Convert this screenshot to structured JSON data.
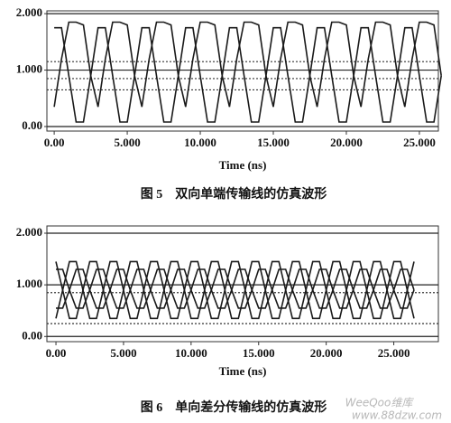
{
  "chart_data": [
    {
      "type": "line",
      "caption": "图 5　双向单端传输线的仿真波形",
      "xlabel": "Time (ns)",
      "x": [
        0,
        0.5,
        1,
        1.5,
        2,
        2.5,
        3,
        3.5,
        4,
        4.5,
        5,
        5.5,
        6,
        6.5,
        7,
        7.5,
        8,
        8.5,
        9,
        9.5,
        10,
        10.5,
        11,
        11.5,
        12,
        12.5,
        13,
        13.5,
        14,
        14.5,
        15,
        15.5,
        16,
        16.5,
        17,
        17.5,
        18,
        18.5,
        19,
        19.5,
        20,
        20.5,
        21,
        21.5,
        22,
        22.5,
        23,
        23.5,
        24,
        24.5,
        25,
        25.5,
        26,
        26.5
      ],
      "series": [
        {
          "color": "#1a1a1a",
          "values": [
            0.35,
            1.2,
            1.85,
            1.85,
            1.8,
            0.9,
            0.35,
            1.2,
            1.85,
            1.85,
            1.8,
            0.9,
            0.35,
            1.2,
            1.85,
            1.85,
            1.8,
            0.9,
            0.35,
            1.2,
            1.85,
            1.85,
            1.8,
            0.9,
            0.35,
            1.2,
            1.85,
            1.85,
            1.8,
            0.9,
            0.35,
            1.2,
            1.85,
            1.85,
            1.8,
            0.9,
            0.35,
            1.2,
            1.85,
            1.85,
            1.8,
            0.9,
            0.35,
            1.2,
            1.85,
            1.85,
            1.8,
            0.9,
            0.35,
            1.2,
            1.85,
            1.85,
            1.8,
            0.9
          ]
        },
        {
          "color": "#1a1a1a",
          "values": [
            1.75,
            1.75,
            0.9,
            0.08,
            0.08,
            0.9,
            1.75,
            1.75,
            0.9,
            0.08,
            0.08,
            0.9,
            1.75,
            1.75,
            0.9,
            0.08,
            0.08,
            0.9,
            1.75,
            1.75,
            0.9,
            0.08,
            0.08,
            0.9,
            1.75,
            1.75,
            0.9,
            0.08,
            0.08,
            0.9,
            1.75,
            1.75,
            0.9,
            0.08,
            0.08,
            0.9,
            1.75,
            1.75,
            0.9,
            0.08,
            0.08,
            0.9,
            1.75,
            1.75,
            0.9,
            0.08,
            0.08,
            0.9,
            1.75,
            1.75,
            0.9,
            0.08,
            0.08,
            0.9
          ]
        }
      ],
      "xlim": [
        -0.5,
        26.3
      ],
      "ylim": [
        -0.08,
        2.05
      ],
      "xticks": [
        {
          "value": 0,
          "label": "0.00"
        },
        {
          "value": 5,
          "label": "5.000"
        },
        {
          "value": 10,
          "label": "10.000"
        },
        {
          "value": 15,
          "label": "15.000"
        },
        {
          "value": 20,
          "label": "20.000"
        },
        {
          "value": 25,
          "label": "25.000"
        }
      ],
      "yticks": [
        {
          "value": 0,
          "label": "0.00"
        },
        {
          "value": 1,
          "label": "1.000"
        },
        {
          "value": 2,
          "label": "2.000"
        }
      ],
      "grid": true,
      "ref_lines": [
        {
          "value": 1.15,
          "style": "dotted"
        },
        {
          "value": 0.85,
          "style": "dotted"
        },
        {
          "value": 0.65,
          "style": "dotted"
        }
      ]
    },
    {
      "type": "line",
      "caption": "图 6　单向差分传输线的仿真波形",
      "xlabel": "Time (ns)",
      "x": [
        0,
        0.5,
        1,
        1.5,
        2,
        2.5,
        3,
        3.5,
        4,
        4.5,
        5,
        5.5,
        6,
        6.5,
        7,
        7.5,
        8,
        8.5,
        9,
        9.5,
        10,
        10.5,
        11,
        11.5,
        12,
        12.5,
        13,
        13.5,
        14,
        14.5,
        15,
        15.5,
        16,
        16.5,
        17,
        17.5,
        18,
        18.5,
        19,
        19.5,
        20,
        20.5,
        21,
        21.5,
        22,
        22.5,
        23,
        23.5,
        24,
        24.5,
        25,
        25.5,
        26,
        26.5
      ],
      "series": [
        {
          "color": "#1a1a1a",
          "values": [
            0.35,
            0.9,
            1.45,
            1.45,
            0.9,
            0.35,
            0.35,
            0.9,
            1.45,
            1.45,
            0.9,
            0.35,
            0.35,
            0.9,
            1.45,
            1.45,
            0.9,
            0.35,
            0.35,
            0.9,
            1.45,
            1.45,
            0.9,
            0.35,
            0.35,
            0.9,
            1.45,
            1.45,
            0.9,
            0.35,
            0.35,
            0.9,
            1.45,
            1.45,
            0.9,
            0.35,
            0.35,
            0.9,
            1.45,
            1.45,
            0.9,
            0.35,
            0.35,
            0.9,
            1.45,
            1.45,
            0.9,
            0.35,
            0.35,
            0.9,
            1.45,
            1.45,
            0.9,
            0.35
          ]
        },
        {
          "color": "#1a1a1a",
          "values": [
            1.45,
            0.9,
            0.35,
            0.35,
            0.9,
            1.45,
            1.45,
            0.9,
            0.35,
            0.35,
            0.9,
            1.45,
            1.45,
            0.9,
            0.35,
            0.35,
            0.9,
            1.45,
            1.45,
            0.9,
            0.35,
            0.35,
            0.9,
            1.45,
            1.45,
            0.9,
            0.35,
            0.35,
            0.9,
            1.45,
            1.45,
            0.9,
            0.35,
            0.35,
            0.9,
            1.45,
            1.45,
            0.9,
            0.35,
            0.35,
            0.9,
            1.45,
            1.45,
            0.9,
            0.35,
            0.35,
            0.9,
            1.45,
            1.45,
            0.9,
            0.35,
            0.35,
            0.9,
            1.45
          ]
        },
        {
          "color": "#1a1a1a",
          "values": [
            0.55,
            0.55,
            0.9,
            1.3,
            1.3,
            0.9,
            0.55,
            0.55,
            0.9,
            1.3,
            1.3,
            0.9,
            0.55,
            0.55,
            0.9,
            1.3,
            1.3,
            0.9,
            0.55,
            0.55,
            0.9,
            1.3,
            1.3,
            0.9,
            0.55,
            0.55,
            0.9,
            1.3,
            1.3,
            0.9,
            0.55,
            0.55,
            0.9,
            1.3,
            1.3,
            0.9,
            0.55,
            0.55,
            0.9,
            1.3,
            1.3,
            0.9,
            0.55,
            0.55,
            0.9,
            1.3,
            1.3,
            0.9,
            0.55,
            0.55,
            0.9,
            1.3,
            1.3,
            0.9
          ]
        },
        {
          "color": "#1a1a1a",
          "values": [
            1.3,
            1.3,
            0.9,
            0.55,
            0.55,
            0.9,
            1.3,
            1.3,
            0.9,
            0.55,
            0.55,
            0.9,
            1.3,
            1.3,
            0.9,
            0.55,
            0.55,
            0.9,
            1.3,
            1.3,
            0.9,
            0.55,
            0.55,
            0.9,
            1.3,
            1.3,
            0.9,
            0.55,
            0.55,
            0.9,
            1.3,
            1.3,
            0.9,
            0.55,
            0.55,
            0.9,
            1.3,
            1.3,
            0.9,
            0.55,
            0.55,
            0.9,
            1.3,
            1.3,
            0.9,
            0.55,
            0.55,
            0.9,
            1.3,
            1.3,
            0.9,
            0.55,
            0.55,
            0.9
          ]
        }
      ],
      "xlim": [
        -0.67,
        28.3
      ],
      "ylim": [
        -0.1,
        2.14
      ],
      "xticks": [
        {
          "value": 0,
          "label": "0.00"
        },
        {
          "value": 5,
          "label": "5.000"
        },
        {
          "value": 10,
          "label": "10.000"
        },
        {
          "value": 15,
          "label": "15.000"
        },
        {
          "value": 20,
          "label": "20.000"
        },
        {
          "value": 25,
          "label": "25.000"
        }
      ],
      "yticks": [
        {
          "value": 0,
          "label": "0.00"
        },
        {
          "value": 1,
          "label": "1.000"
        },
        {
          "value": 2,
          "label": "2.000"
        }
      ],
      "grid": true,
      "ref_lines": [
        {
          "value": 0.85,
          "style": "dotted"
        },
        {
          "value": 0.25,
          "style": "dotted"
        }
      ]
    }
  ],
  "watermark": [
    "WeeQoo维库",
    "www.88dzw.com"
  ]
}
